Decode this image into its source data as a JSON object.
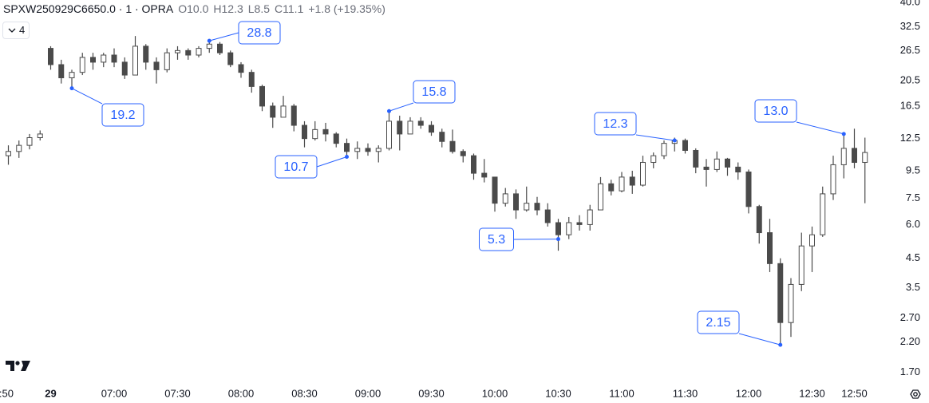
{
  "header": {
    "symbol": "SPXW250929C6650.0 · 1 · OPRA",
    "o_label": "O",
    "o": "10.0",
    "h_label": "H",
    "h": "12.3",
    "l_label": "L",
    "l": "8.5",
    "c_label": "C",
    "c": "11.1",
    "change": "+1.8 (+19.35%)",
    "interval_count": "4"
  },
  "chart_data": {
    "type": "candlestick",
    "log_scale": true,
    "grid": false,
    "up_color": "#ffffff",
    "down_color": "#4a4a4a",
    "line_color": "#4a4a4a",
    "annotation_color": "#2962ff",
    "categories": [
      ":50",
      null,
      null,
      null,
      "29",
      null,
      null,
      null,
      null,
      null,
      "07:00",
      null,
      null,
      null,
      null,
      null,
      "07:30",
      null,
      null,
      null,
      null,
      null,
      "08:00",
      null,
      null,
      null,
      null,
      null,
      "08:30",
      null,
      null,
      null,
      null,
      null,
      "09:00",
      null,
      null,
      null,
      null,
      null,
      "09:30",
      null,
      null,
      null,
      null,
      null,
      "10:00",
      null,
      null,
      null,
      null,
      null,
      "10:30",
      null,
      null,
      null,
      null,
      null,
      "11:00",
      null,
      null,
      null,
      null,
      null,
      "11:30",
      null,
      null,
      null,
      null,
      null,
      "12:00",
      null,
      null,
      null,
      null,
      null,
      "12:30",
      null,
      null,
      null,
      "12:50",
      null
    ],
    "open": [
      10.8,
      11.2,
      11.8,
      12.6,
      27.0,
      23.5,
      21,
      22,
      25,
      24,
      25.5,
      24,
      21.5,
      27.5,
      24,
      22.5,
      26,
      26.5,
      25.5,
      27,
      28,
      26,
      23.5,
      22,
      19.5,
      16.5,
      15,
      16.5,
      14,
      12.5,
      13.5,
      13,
      12,
      11.2,
      11.5,
      11.2,
      11.5,
      14.5,
      13,
      14.5,
      14,
      13.2,
      12.2,
      11.2,
      10.8,
      9.3,
      9,
      7.2,
      7.8,
      6.8,
      7.2,
      6.8,
      6.1,
      5.5,
      6.1,
      6,
      6.8,
      8.5,
      8,
      9,
      8.4,
      10.2,
      10.8,
      12,
      12.3,
      11.3,
      9.8,
      9.6,
      10.5,
      9.8,
      9.4,
      7.0,
      5.6,
      4.3,
      2.6,
      3.6,
      5,
      5.5,
      7.8,
      10,
      11.5,
      10.2
    ],
    "high": [
      11.8,
      12.3,
      13.0,
      13.4,
      27.5,
      24.5,
      22.5,
      26,
      26,
      26,
      27,
      25,
      30,
      28,
      25,
      27,
      27.5,
      27,
      27.5,
      28.8,
      28.5,
      26.5,
      24,
      22.5,
      19.8,
      17,
      18,
      16.8,
      14.5,
      14.5,
      14.3,
      13.2,
      12.5,
      12.2,
      12,
      11.8,
      15.8,
      15.2,
      15,
      15,
      14.5,
      13.6,
      13.5,
      11.4,
      11,
      10.5,
      9,
      8.2,
      8.1,
      8.3,
      7.6,
      7.2,
      6.3,
      6.4,
      6.5,
      7.1,
      9,
      8.8,
      9.4,
      9.5,
      10.8,
      11.1,
      12.3,
      12.6,
      12.5,
      11.5,
      10.5,
      11.2,
      10.6,
      10.2,
      9.6,
      7.1,
      6.3,
      4.5,
      3.8,
      5.6,
      5.9,
      8.3,
      10.8,
      13.0,
      13.6,
      12.6
    ],
    "low": [
      10,
      10.6,
      11.4,
      12.3,
      22.5,
      20,
      19.2,
      21.5,
      22.5,
      23,
      23,
      20.8,
      21.5,
      22.5,
      20,
      22,
      24.5,
      24.5,
      25,
      26,
      25.5,
      23,
      21,
      18.5,
      15.8,
      13.7,
      15,
      13.3,
      11.6,
      12.3,
      12.2,
      11.6,
      10.7,
      10.5,
      10.8,
      10.2,
      11.3,
      11.3,
      13,
      13.6,
      12.8,
      11.6,
      11,
      10.2,
      8.8,
      8.6,
      6.7,
      7,
      6.3,
      6.7,
      6.5,
      5.9,
      4.8,
      5.3,
      5.7,
      5.7,
      6.8,
      7.7,
      7.9,
      7.8,
      8.3,
      9.7,
      10.5,
      11.2,
      11,
      9.3,
      8.3,
      9.4,
      9.1,
      8.8,
      6.6,
      5.1,
      4.0,
      2.15,
      2.3,
      3.4,
      4.0,
      5.4,
      7.4,
      8.9,
      9.7,
      7.2
    ],
    "close": [
      11.2,
      11.8,
      12.6,
      13.0,
      23.5,
      21,
      22,
      25,
      24,
      25.5,
      24,
      21.5,
      27.5,
      24,
      22.5,
      26,
      26.5,
      25.5,
      27,
      28,
      26,
      23.5,
      22,
      19.5,
      16.5,
      15,
      16.5,
      14,
      12.5,
      13.5,
      13,
      12,
      11.2,
      11.5,
      11.2,
      11.5,
      14.5,
      13,
      14.5,
      14,
      13.2,
      12.2,
      11.2,
      10.8,
      9.3,
      9,
      7.2,
      7.8,
      6.8,
      7.2,
      6.8,
      6.1,
      5.5,
      6.1,
      6,
      6.8,
      8.5,
      8,
      9,
      8.4,
      10.2,
      10.8,
      12,
      12.3,
      11.3,
      9.8,
      9.6,
      10.5,
      9.8,
      9.4,
      7.0,
      5.6,
      4.3,
      2.6,
      3.6,
      5,
      5.5,
      7.8,
      10,
      11.5,
      10.2,
      11.1
    ],
    "annotations": [
      {
        "value": 28.8,
        "label": "28.8"
      },
      {
        "value": 19.2,
        "label": "19.2"
      },
      {
        "value": 10.7,
        "label": "10.7"
      },
      {
        "value": 15.8,
        "label": "15.8"
      },
      {
        "value": 5.3,
        "label": "5.3"
      },
      {
        "value": 12.3,
        "label": "12.3"
      },
      {
        "value": 2.15,
        "label": "2.15"
      },
      {
        "value": 13,
        "label": "13.0"
      }
    ],
    "ylim": [
      1.52,
      40.8
    ],
    "yticks": [
      {
        "value": 40,
        "label": "40.0"
      },
      32.5,
      26.5,
      20.5,
      16.5,
      12.5,
      9.5,
      7.5,
      {
        "value": 6,
        "label": "6.0"
      },
      4.5,
      3.5,
      {
        "value": 2.7,
        "label": "2.70"
      },
      {
        "value": 2.2,
        "label": "2.20"
      },
      {
        "value": 1.7,
        "label": "1.70"
      }
    ]
  }
}
